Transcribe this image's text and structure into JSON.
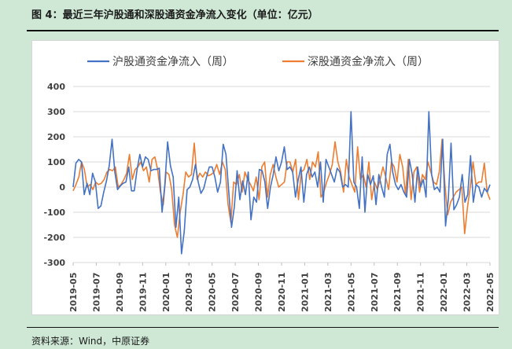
{
  "figure": {
    "title": "图 4：最近三年沪股通和深股通资金净流入变化（单位：亿元）",
    "source": "资料来源：Wind，中原证券"
  },
  "chart_data": {
    "type": "line",
    "ylim": [
      -300,
      400
    ],
    "yticks": [
      400,
      300,
      200,
      100,
      0,
      -100,
      -200,
      -300
    ],
    "xticks": [
      "2019-05",
      "2019-07",
      "2019-09",
      "2019-11",
      "2020-01",
      "2020-03",
      "2020-05",
      "2020-07",
      "2020-09",
      "2020-11",
      "2021-01",
      "2021-03",
      "2021-05",
      "2021-07",
      "2021-09",
      "2021-11",
      "2022-01",
      "2022-03",
      "2022-05"
    ],
    "x_start": "2019-05",
    "x_end": "2022-05",
    "grid": true,
    "legend_position": "top",
    "colors": {
      "sh": "#4472c4",
      "sz": "#ed7d31"
    },
    "series": [
      {
        "name": "沪股通资金净流入（周）",
        "values": [
          0,
          95,
          110,
          100,
          -30,
          15,
          -30,
          55,
          20,
          -85,
          -75,
          -20,
          25,
          85,
          190,
          60,
          -10,
          5,
          15,
          20,
          80,
          -15,
          -15,
          70,
          130,
          80,
          120,
          110,
          65,
          70,
          70,
          75,
          -100,
          10,
          180,
          85,
          40,
          -160,
          -40,
          -265,
          -175,
          -10,
          0,
          30,
          90,
          20,
          -25,
          -5,
          40,
          80,
          80,
          40,
          -20,
          20,
          170,
          130,
          -20,
          -160,
          -80,
          65,
          -50,
          25,
          -30,
          60,
          -130,
          -40,
          -60,
          70,
          65,
          20,
          -85,
          0,
          50,
          120,
          65,
          100,
          160,
          70,
          80,
          60,
          -40,
          30,
          80,
          -60,
          50,
          80,
          40,
          60,
          0,
          100,
          -60,
          110,
          80,
          50,
          20,
          75,
          60,
          0,
          10,
          0,
          300,
          20,
          0,
          -85,
          120,
          -100,
          50,
          10,
          45,
          -70,
          50,
          0,
          -40,
          130,
          170,
          60,
          10,
          -10,
          10,
          -20,
          -40,
          110,
          50,
          -60,
          80,
          0,
          30,
          -40,
          300,
          50,
          -10,
          0,
          -20,
          190,
          -155,
          -50,
          175,
          -90,
          -70,
          -40,
          50,
          -60,
          -30,
          125,
          -60,
          10,
          0,
          -40,
          -5,
          -20,
          10
        ]
      },
      {
        "name": "深股通资金净流入（周）",
        "values": [
          -15,
          10,
          40,
          100,
          70,
          0,
          10,
          -10,
          20,
          10,
          15,
          30,
          60,
          70,
          65,
          80,
          0,
          10,
          30,
          55,
          130,
          30,
          70,
          80,
          100,
          65,
          80,
          20,
          110,
          120,
          70,
          -20,
          -70,
          60,
          50,
          -10,
          -150,
          -200,
          -100,
          -30,
          60,
          40,
          50,
          175,
          30,
          55,
          40,
          60,
          45,
          50,
          60,
          90,
          50,
          100,
          70,
          -70,
          -140,
          20,
          10,
          50,
          -20,
          60,
          30,
          10,
          -15,
          40,
          -50,
          80,
          100,
          -40,
          50,
          90,
          40,
          0,
          10,
          20,
          100,
          100,
          60,
          110,
          -50,
          60,
          70,
          110,
          30,
          100,
          80,
          140,
          -40,
          -20,
          20,
          50,
          90,
          180,
          100,
          60,
          -20,
          110,
          40,
          10,
          -20,
          160,
          30,
          50,
          0,
          100,
          -50,
          20,
          -10,
          30,
          80,
          40,
          -10,
          100,
          80,
          20,
          130,
          80,
          -30,
          110,
          -50,
          60,
          80,
          -20,
          50,
          30,
          100,
          60,
          20,
          10,
          60,
          190,
          10,
          -110,
          -60,
          -40,
          -20,
          -10,
          0,
          -185,
          -80,
          0,
          100,
          10,
          20,
          20,
          95,
          -20,
          -50
        ]
      }
    ]
  }
}
